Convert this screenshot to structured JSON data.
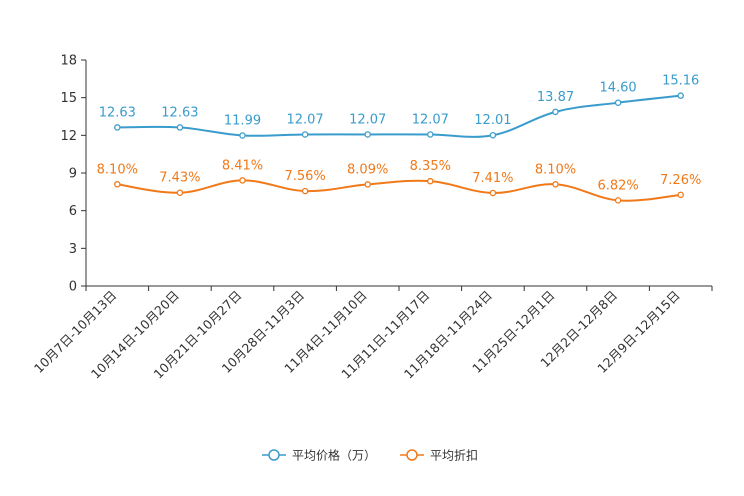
{
  "chart_data": {
    "type": "line",
    "title": "",
    "xlabel": "",
    "ylabel": "",
    "ylim": [
      0,
      18
    ],
    "yticks": [
      0,
      3,
      6,
      9,
      12,
      15,
      18
    ],
    "grid": false,
    "legend_position": "bottom-center",
    "categories": [
      "10月7日-10月13日",
      "10月14日-10月20日",
      "10月21日-10月27日",
      "10月28日-11月3日",
      "11月4日-11月10日",
      "11月11日-11月17日",
      "11月18日-11月24日",
      "11月25日-12月1日",
      "12月2日-12月8日",
      "12月9日-12月15日"
    ],
    "series": [
      {
        "name": "平均价格（万）",
        "color": "#3a9ccc",
        "values": [
          12.63,
          12.63,
          11.99,
          12.07,
          12.07,
          12.07,
          12.01,
          13.87,
          14.6,
          15.16
        ],
        "labels": [
          "12.63",
          "12.63",
          "11.99",
          "12.07",
          "12.07",
          "12.07",
          "12.01",
          "13.87",
          "14.60",
          "15.16"
        ]
      },
      {
        "name": "平均折扣",
        "color": "#f07a1a",
        "values": [
          8.1,
          7.43,
          8.41,
          7.56,
          8.09,
          8.35,
          7.41,
          8.1,
          6.82,
          7.26
        ],
        "labels": [
          "8.10%",
          "7.43%",
          "8.41%",
          "7.56%",
          "8.09%",
          "8.35%",
          "7.41%",
          "8.10%",
          "6.82%",
          "7.26%"
        ]
      }
    ]
  }
}
